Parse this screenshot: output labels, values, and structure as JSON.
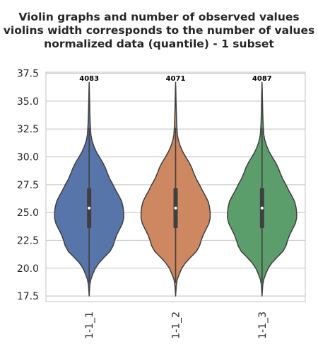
{
  "chart_data": {
    "type": "violin",
    "title_lines": [
      "Violin graphs and number of observed values",
      "violins width corresponds to the number of values",
      "normalized data (quantile) - 1 subset"
    ],
    "categories": [
      "1-1_1",
      "1-1_2",
      "1-1_3"
    ],
    "counts": [
      "4083",
      "4071",
      "4087"
    ],
    "colors": [
      "#5875a9",
      "#cd8761",
      "#5c9e6b"
    ],
    "ylim": [
      17.0,
      37.6
    ],
    "yticks": [
      "17.5",
      "20.0",
      "22.5",
      "25.0",
      "27.5",
      "30.0",
      "32.5",
      "35.0",
      "37.5"
    ],
    "ytick_values": [
      17.5,
      20.0,
      22.5,
      25.0,
      27.5,
      30.0,
      32.5,
      35.0,
      37.5
    ],
    "grid": true,
    "violin_stats": {
      "min": 17.5,
      "q1": 23.6,
      "median": 25.4,
      "q3": 27.2,
      "max": 36.7,
      "whisker_low": 18.7,
      "whisker_high": 32.6
    },
    "density_profile": [
      [
        17.5,
        0.0
      ],
      [
        18.5,
        0.02
      ],
      [
        19.0,
        0.05
      ],
      [
        19.5,
        0.11
      ],
      [
        20.0,
        0.18
      ],
      [
        20.5,
        0.29
      ],
      [
        21.0,
        0.44
      ],
      [
        21.5,
        0.6
      ],
      [
        22.0,
        0.69
      ],
      [
        22.5,
        0.74
      ],
      [
        23.0,
        0.8
      ],
      [
        23.5,
        0.88
      ],
      [
        24.0,
        0.96
      ],
      [
        24.5,
        1.0
      ],
      [
        25.0,
        1.0
      ],
      [
        25.5,
        0.98
      ],
      [
        26.0,
        0.94
      ],
      [
        26.5,
        0.86
      ],
      [
        27.0,
        0.77
      ],
      [
        27.5,
        0.69
      ],
      [
        28.0,
        0.6
      ],
      [
        28.5,
        0.53
      ],
      [
        29.0,
        0.47
      ],
      [
        29.5,
        0.39
      ],
      [
        30.0,
        0.29
      ],
      [
        30.5,
        0.2
      ],
      [
        31.0,
        0.13
      ],
      [
        31.5,
        0.08
      ],
      [
        32.0,
        0.05
      ],
      [
        33.0,
        0.03
      ],
      [
        34.0,
        0.02
      ],
      [
        35.0,
        0.012
      ],
      [
        36.0,
        0.006
      ],
      [
        36.7,
        0.0
      ]
    ]
  }
}
